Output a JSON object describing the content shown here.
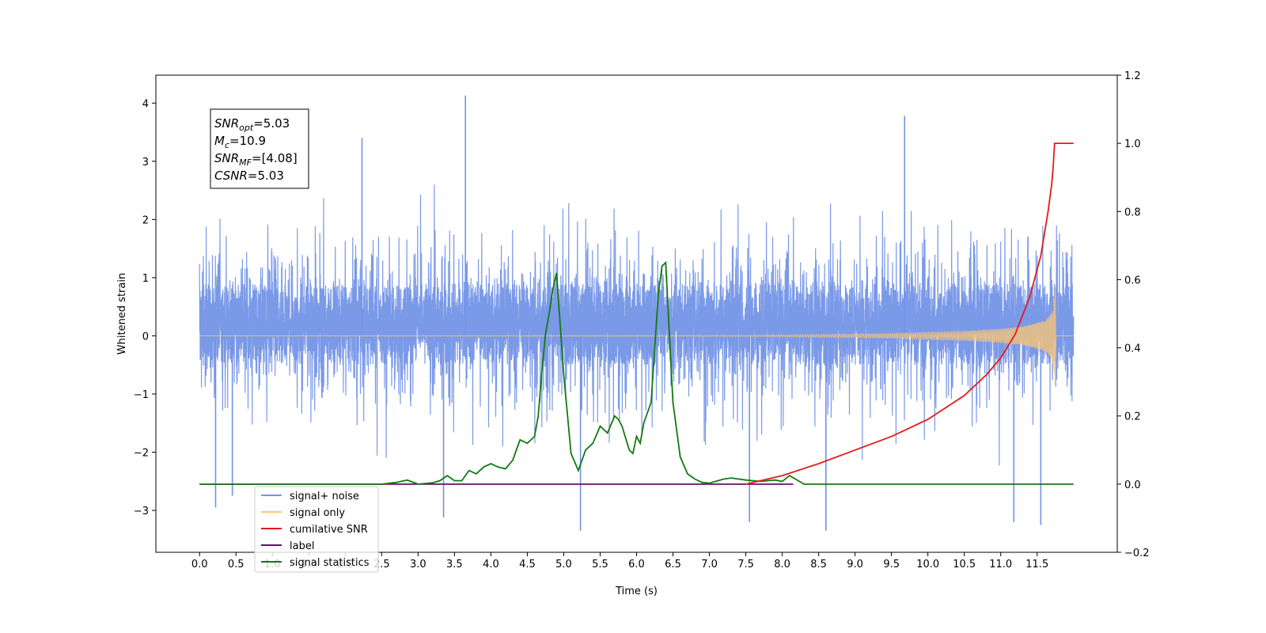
{
  "chart_data": {
    "type": "line",
    "xlabel": "Time (s)",
    "ylabel": "Whitened strain",
    "xlim": [
      -0.6,
      12.6
    ],
    "ylim": [
      -3.72,
      4.48
    ],
    "y2lim": [
      -0.2,
      1.2
    ],
    "x_ticks": [
      0.0,
      0.5,
      1.0,
      1.5,
      2.0,
      2.5,
      3.0,
      3.5,
      4.0,
      4.5,
      5.0,
      5.5,
      6.0,
      6.5,
      7.0,
      7.5,
      8.0,
      8.5,
      9.0,
      9.5,
      10.0,
      10.5,
      11.0,
      11.5
    ],
    "x_tick_labels": [
      "0.0",
      "0.5",
      "1.0",
      "1.5",
      "2.0",
      "2.5",
      "3.0",
      "3.5",
      "4.0",
      "4.5",
      "5.0",
      "5.5",
      "6.0",
      "6.5",
      "7.0",
      "7.5",
      "8.0",
      "8.5",
      "9.0",
      "9.5",
      "10.0",
      "10.5",
      "11.0",
      "11.5"
    ],
    "y_ticks": [
      -3,
      -2,
      -1,
      0,
      1,
      2,
      3,
      4
    ],
    "y_tick_labels": [
      "−3",
      "−2",
      "−1",
      "0",
      "1",
      "2",
      "3",
      "4"
    ],
    "y2_ticks": [
      -0.2,
      0.0,
      0.2,
      0.4,
      0.6,
      0.8,
      1.0,
      1.2
    ],
    "y2_tick_labels": [
      "−0.2",
      "0.0",
      "0.2",
      "0.4",
      "0.6",
      "0.8",
      "1.0",
      "1.2"
    ],
    "annotation": {
      "lines": [
        {
          "sym": "SNR",
          "sub": "opt",
          "value": "=5.03"
        },
        {
          "sym": "M",
          "sub": "c",
          "value": "=10.9"
        },
        {
          "sym": "SNR",
          "sub": "MF",
          "value": "=[4.08]"
        },
        {
          "sym": "CSNR",
          "sub": "",
          "value": "=5.03"
        }
      ]
    },
    "legend": {
      "placement": "lower-left",
      "entries": [
        {
          "label": "signal+ noise",
          "color": "#7393e6"
        },
        {
          "label": "signal only",
          "color": "#fdc773"
        },
        {
          "label": "cumilative SNR",
          "color": "#e41a1c"
        },
        {
          "label": "label",
          "color": "#6a0a6e"
        },
        {
          "label": "signal statistics",
          "color": "#127a12"
        }
      ]
    },
    "series": [
      {
        "name": "signal+ noise",
        "axis": "left",
        "color": "#7393e6",
        "style": "dense noise",
        "x_range": [
          0.0,
          12.0
        ],
        "envelope_typical": [
          -1.8,
          2.2
        ],
        "extremes": [
          {
            "x": 3.65,
            "y": 4.13
          },
          {
            "x": 2.23,
            "y": 3.4
          },
          {
            "x": 9.68,
            "y": 3.78
          },
          {
            "x": 5.23,
            "y": -3.35
          },
          {
            "x": 7.55,
            "y": -3.2
          },
          {
            "x": 8.6,
            "y": -3.35
          },
          {
            "x": 11.55,
            "y": -3.25
          },
          {
            "x": 0.22,
            "y": -2.95
          },
          {
            "x": 0.45,
            "y": -2.75
          },
          {
            "x": 3.35,
            "y": -3.12
          },
          {
            "x": 11.18,
            "y": -3.2
          }
        ]
      },
      {
        "name": "signal only",
        "axis": "left",
        "color": "#fdc773",
        "style": "chirp",
        "x": [
          0.0,
          7.5,
          8.5,
          9.5,
          10.0,
          10.5,
          11.0,
          11.3,
          11.5,
          11.6,
          11.68,
          11.72,
          11.75,
          11.76,
          12.0
        ],
        "amplitude": [
          0.0,
          0.01,
          0.025,
          0.04,
          0.06,
          0.08,
          0.12,
          0.16,
          0.22,
          0.27,
          0.35,
          0.5,
          0.9,
          0.0,
          0.0
        ]
      },
      {
        "name": "cumilative SNR",
        "axis": "right",
        "color": "#e41a1c",
        "x": [
          7.5,
          8.0,
          8.5,
          9.0,
          9.5,
          10.0,
          10.5,
          10.8,
          11.0,
          11.2,
          11.4,
          11.55,
          11.65,
          11.7,
          11.72,
          11.74,
          12.0
        ],
        "y": [
          0.0,
          0.025,
          0.06,
          0.1,
          0.14,
          0.19,
          0.26,
          0.32,
          0.37,
          0.44,
          0.55,
          0.67,
          0.8,
          0.88,
          0.93,
          1.0,
          1.0
        ]
      },
      {
        "name": "label",
        "axis": "right",
        "color": "#6a0a6e",
        "x": [
          0.0,
          8.15
        ],
        "y": [
          0.0,
          0.0
        ]
      },
      {
        "name": "signal statistics",
        "axis": "right",
        "color": "#127a12",
        "x": [
          0.0,
          2.5,
          2.7,
          2.85,
          3.0,
          3.2,
          3.3,
          3.4,
          3.5,
          3.6,
          3.7,
          3.8,
          3.9,
          4.0,
          4.1,
          4.2,
          4.3,
          4.4,
          4.5,
          4.6,
          4.65,
          4.7,
          4.75,
          4.8,
          4.85,
          4.9,
          5.0,
          5.1,
          5.2,
          5.3,
          5.4,
          5.5,
          5.6,
          5.7,
          5.75,
          5.8,
          5.9,
          5.95,
          6.0,
          6.05,
          6.1,
          6.2,
          6.3,
          6.35,
          6.4,
          6.5,
          6.6,
          6.7,
          6.8,
          6.9,
          7.0,
          7.2,
          7.3,
          7.5,
          7.7,
          7.9,
          8.0,
          8.1,
          8.3,
          8.5,
          9.0,
          12.0
        ],
        "y": [
          0.0,
          0.0,
          0.005,
          0.012,
          0.0,
          0.004,
          0.01,
          0.025,
          0.01,
          0.01,
          0.04,
          0.03,
          0.05,
          0.06,
          0.05,
          0.045,
          0.07,
          0.13,
          0.12,
          0.14,
          0.2,
          0.33,
          0.44,
          0.5,
          0.57,
          0.62,
          0.32,
          0.09,
          0.04,
          0.1,
          0.12,
          0.17,
          0.15,
          0.2,
          0.19,
          0.17,
          0.1,
          0.09,
          0.14,
          0.12,
          0.18,
          0.24,
          0.56,
          0.64,
          0.65,
          0.24,
          0.08,
          0.03,
          0.015,
          0.005,
          0.003,
          0.015,
          0.018,
          0.012,
          0.008,
          0.012,
          0.008,
          0.025,
          0.0,
          0.0,
          0.0,
          0.0
        ]
      }
    ]
  }
}
